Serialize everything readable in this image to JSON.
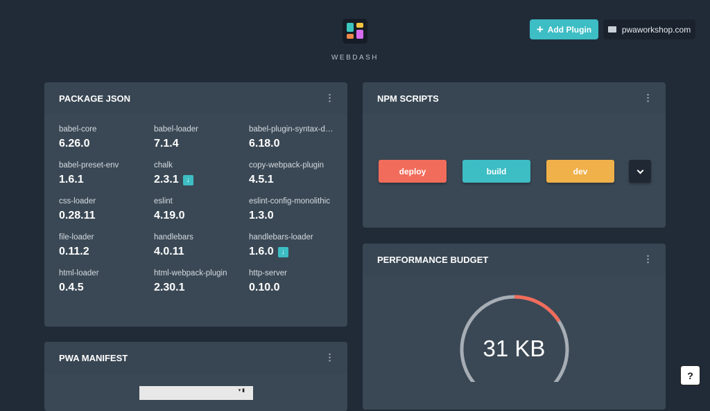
{
  "header": {
    "brand": "WEBDASH",
    "add_plugin": "Add Plugin",
    "site": "pwaworkshop.com",
    "icons": {
      "add": "plus-icon",
      "site": "folder-icon"
    }
  },
  "package_json": {
    "title": "PACKAGE JSON",
    "packages": [
      {
        "name": "babel-core",
        "version": "6.26.0",
        "update": false
      },
      {
        "name": "babel-loader",
        "version": "7.1.4",
        "update": false
      },
      {
        "name": "babel-plugin-syntax-dynamic-import",
        "version": "6.18.0",
        "update": false
      },
      {
        "name": "babel-preset-env",
        "version": "1.6.1",
        "update": false
      },
      {
        "name": "chalk",
        "version": "2.3.1",
        "update": true
      },
      {
        "name": "copy-webpack-plugin",
        "version": "4.5.1",
        "update": false
      },
      {
        "name": "css-loader",
        "version": "0.28.11",
        "update": false
      },
      {
        "name": "eslint",
        "version": "4.19.0",
        "update": false
      },
      {
        "name": "eslint-config-monolithic",
        "version": "1.3.0",
        "update": false
      },
      {
        "name": "file-loader",
        "version": "0.11.2",
        "update": false
      },
      {
        "name": "handlebars",
        "version": "4.0.11",
        "update": false
      },
      {
        "name": "handlebars-loader",
        "version": "1.6.0",
        "update": true
      },
      {
        "name": "html-loader",
        "version": "0.4.5",
        "update": false
      },
      {
        "name": "html-webpack-plugin",
        "version": "2.30.1",
        "update": false
      },
      {
        "name": "http-server",
        "version": "0.10.0",
        "update": false
      }
    ]
  },
  "npm_scripts": {
    "title": "NPM SCRIPTS",
    "scripts": [
      {
        "label": "deploy",
        "color": "#f26c5b"
      },
      {
        "label": "build",
        "color": "#3dbdc4"
      },
      {
        "label": "dev",
        "color": "#f0b04a"
      }
    ]
  },
  "performance_budget": {
    "title": "PERFORMANCE BUDGET",
    "value": "31 KB",
    "fraction_used": 0.16,
    "colors": {
      "used": "#f26c5b",
      "track": "#a6adb4"
    }
  },
  "pwa_manifest": {
    "title": "PWA MANIFEST"
  },
  "help": "?"
}
